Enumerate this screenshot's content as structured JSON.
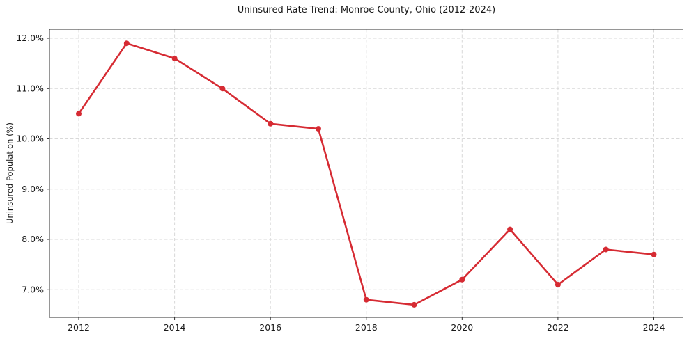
{
  "chart_data": {
    "type": "line",
    "title": "Uninsured Rate Trend: Monroe County, Ohio (2012-2024)",
    "xlabel": "",
    "ylabel": "Uninsured Population (%)",
    "x": [
      2012,
      2013,
      2014,
      2015,
      2016,
      2017,
      2018,
      2019,
      2020,
      2021,
      2022,
      2023,
      2024
    ],
    "values": [
      10.5,
      11.9,
      11.6,
      11.0,
      10.3,
      10.2,
      6.8,
      6.7,
      7.2,
      8.2,
      7.1,
      7.8,
      7.7
    ],
    "xlim": [
      2011.39,
      2024.61
    ],
    "ylim": [
      6.45,
      12.18
    ],
    "xticks": [
      {
        "v": 2012,
        "label": "2012"
      },
      {
        "v": 2014,
        "label": "2014"
      },
      {
        "v": 2016,
        "label": "2016"
      },
      {
        "v": 2018,
        "label": "2018"
      },
      {
        "v": 2020,
        "label": "2020"
      },
      {
        "v": 2022,
        "label": "2022"
      },
      {
        "v": 2024,
        "label": "2024"
      }
    ],
    "yticks": [
      {
        "v": 7.0,
        "label": "7.0%"
      },
      {
        "v": 8.0,
        "label": "8.0%"
      },
      {
        "v": 9.0,
        "label": "9.0%"
      },
      {
        "v": 10.0,
        "label": "10.0%"
      },
      {
        "v": 11.0,
        "label": "11.0%"
      },
      {
        "v": 12.0,
        "label": "12.0%"
      }
    ],
    "grid": true,
    "legend": "none",
    "line_color": "#d62b33",
    "grid_color": "#d8d8d8",
    "spine_color": "#2e2e2e",
    "marker": "circle"
  }
}
